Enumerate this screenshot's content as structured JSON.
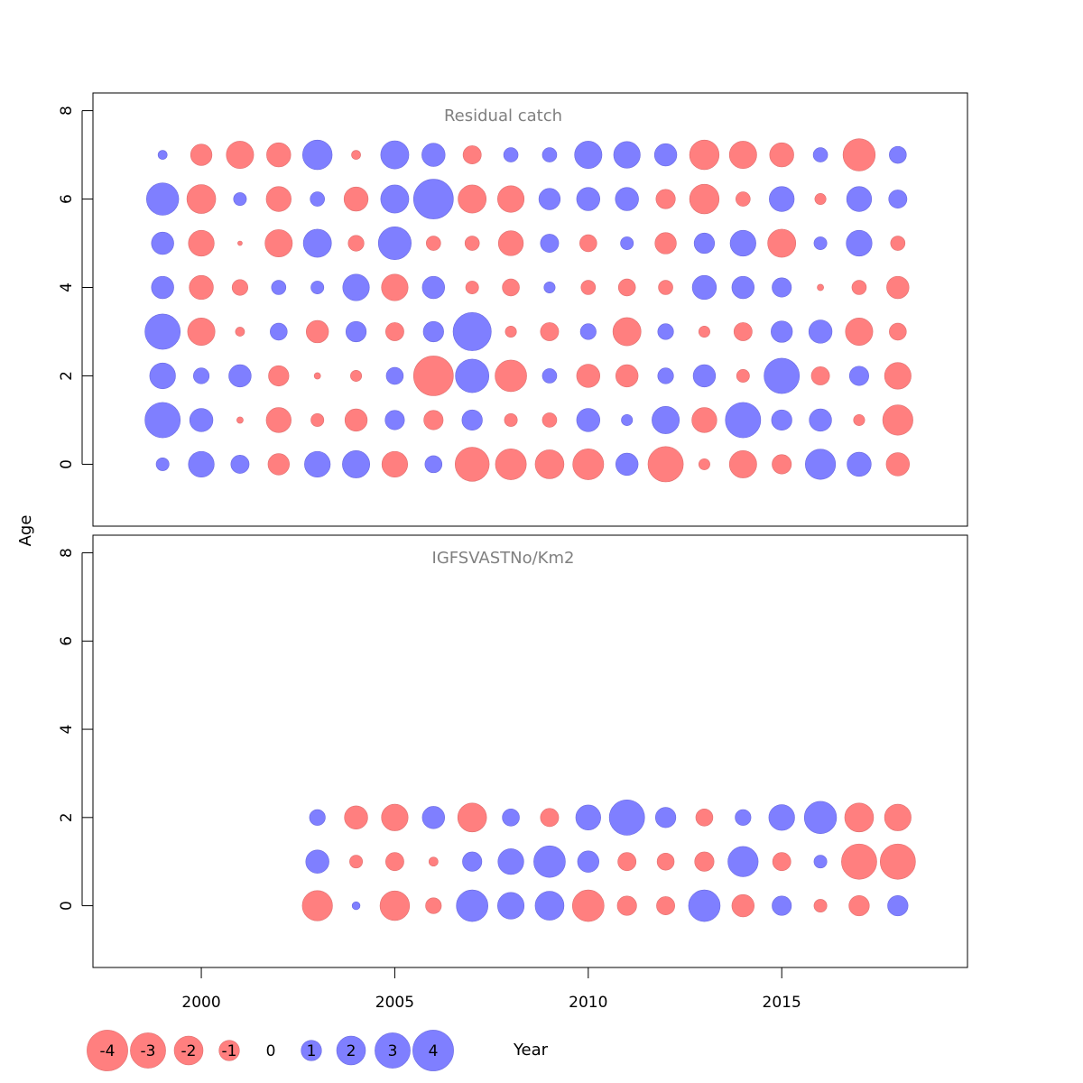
{
  "chart_data": {
    "type": "scatter",
    "subtype": "bubble",
    "xlabel": "Year",
    "ylabel": "Age",
    "xlim": [
      1997.2,
      2019.8
    ],
    "ylim": [
      -1.4,
      8.4
    ],
    "x_ticks": [
      2000,
      2005,
      2010,
      2015
    ],
    "x_tick_labels": [
      "2000",
      "2005",
      "2010",
      "2015"
    ],
    "y_ticks": [
      0,
      2,
      4,
      6,
      8
    ],
    "y_tick_labels": [
      "0",
      "2",
      "4",
      "6",
      "8"
    ],
    "colors": {
      "negative": "#ff7f7f",
      "positive": "#7f7fff",
      "border": "#9090b0"
    },
    "legend": {
      "values": [
        -4,
        -3,
        -2,
        -1,
        0,
        1,
        2,
        3,
        4
      ],
      "labels": [
        "-4",
        "-3",
        "-2",
        "-1",
        "0",
        "1",
        "2",
        "3",
        "4"
      ]
    },
    "panels": [
      {
        "title": "Residual catch",
        "years": [
          1999,
          2000,
          2001,
          2002,
          2003,
          2004,
          2005,
          2006,
          2007,
          2008,
          2009,
          2010,
          2011,
          2012,
          2013,
          2014,
          2015,
          2016,
          2017,
          2018
        ],
        "ages": [
          0,
          1,
          2,
          3,
          4,
          5,
          6,
          7
        ],
        "residuals": [
          [
            0.4,
            1.6,
            0.8,
            -1.1,
            1.6,
            1.8,
            -1.6,
            0.7,
            -2.8,
            -2.3,
            -2.0,
            -2.3,
            1.2,
            -3.0,
            -0.3,
            -1.8,
            -0.9,
            2.2,
            1.4,
            -1.3
          ],
          [
            3.0,
            1.3,
            -0.1,
            -1.5,
            -0.4,
            -1.2,
            0.9,
            -0.9,
            1.0,
            -0.4,
            -0.5,
            1.3,
            0.3,
            1.8,
            -1.5,
            3.0,
            1.0,
            1.2,
            -0.3,
            -2.2
          ],
          [
            1.6,
            0.6,
            1.2,
            -1.0,
            -0.1,
            -0.3,
            0.7,
            -3.8,
            2.7,
            -2.4,
            0.5,
            -1.3,
            -1.2,
            0.6,
            1.2,
            -0.4,
            3.0,
            -0.8,
            0.9,
            -1.7
          ],
          [
            3.0,
            -1.8,
            -0.2,
            0.7,
            -1.2,
            1.0,
            -0.8,
            1.0,
            3.5,
            -0.3,
            -0.8,
            0.6,
            -1.9,
            0.6,
            -0.3,
            -0.8,
            1.1,
            1.3,
            -1.8,
            -0.7
          ],
          [
            1.2,
            -1.4,
            -0.6,
            0.5,
            0.4,
            1.7,
            -1.7,
            1.2,
            -0.4,
            -0.7,
            0.3,
            -0.5,
            -0.7,
            -0.5,
            1.4,
            1.2,
            0.9,
            -0.1,
            -0.5,
            -1.2
          ],
          [
            1.2,
            -1.6,
            -0.05,
            -1.8,
            1.9,
            -0.6,
            2.6,
            -0.5,
            -0.5,
            -1.5,
            0.8,
            -0.7,
            0.4,
            -1.1,
            1.0,
            1.6,
            -1.9,
            0.4,
            1.6,
            -0.5
          ],
          [
            2.5,
            -2.0,
            0.4,
            -1.5,
            0.5,
            -1.4,
            1.9,
            3.8,
            -1.9,
            -1.7,
            1.1,
            1.3,
            1.3,
            -0.9,
            -2.1,
            -0.5,
            1.5,
            -0.3,
            1.5,
            0.8
          ],
          [
            0.2,
            -1.1,
            -1.8,
            -1.4,
            2.1,
            -0.2,
            1.9,
            1.3,
            -0.8,
            0.5,
            0.5,
            1.8,
            1.7,
            1.2,
            -2.1,
            -1.8,
            -1.4,
            0.5,
            -2.5,
            0.7
          ]
        ]
      },
      {
        "title": "IGFSVASTNo/Km2",
        "years": [
          2003,
          2004,
          2005,
          2006,
          2007,
          2008,
          2009,
          2010,
          2011,
          2012,
          2013,
          2014,
          2015,
          2016,
          2017,
          2018
        ],
        "ages": [
          0,
          1,
          2
        ],
        "residuals": [
          [
            -2.2,
            0.15,
            -2.1,
            -0.6,
            2.4,
            1.7,
            2.0,
            -2.4,
            -0.9,
            -0.8,
            2.4,
            -1.2,
            0.9,
            -0.4,
            -1.0,
            1.0
          ],
          [
            1.3,
            -0.4,
            -0.8,
            -0.2,
            0.9,
            1.6,
            2.4,
            1.1,
            -0.8,
            -0.7,
            -0.9,
            2.2,
            -0.8,
            0.4,
            -3.0,
            -3.0
          ],
          [
            0.6,
            -1.3,
            -1.7,
            1.2,
            -2.0,
            0.7,
            -0.8,
            1.5,
            3.0,
            1.0,
            -0.7,
            0.6,
            1.6,
            2.5,
            -2.0,
            -1.7
          ]
        ]
      }
    ]
  }
}
